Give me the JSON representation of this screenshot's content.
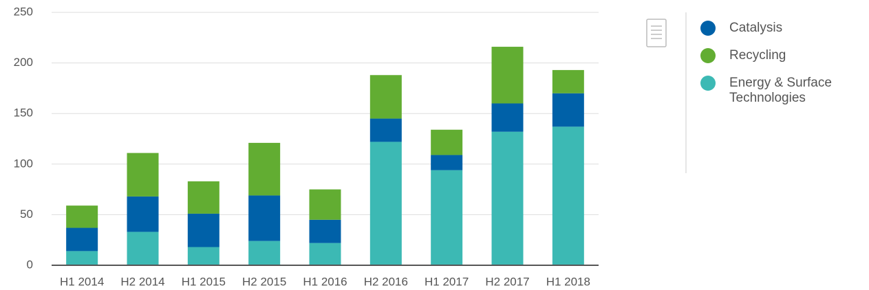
{
  "chart_data": {
    "type": "stacked_bar",
    "categories": [
      "H1 2014",
      "H2 2014",
      "H1 2015",
      "H2 2015",
      "H1 2016",
      "H2 2016",
      "H1 2017",
      "H2 2017",
      "H1 2018"
    ],
    "series": [
      {
        "name": "Catalysis",
        "color": "#0061a8",
        "values": [
          23,
          35,
          33,
          45,
          23,
          23,
          15,
          28,
          33
        ]
      },
      {
        "name": "Recycling",
        "color": "#62ad32",
        "values": [
          22,
          43,
          32,
          52,
          30,
          43,
          25,
          56,
          23
        ]
      },
      {
        "name": "Energy & Surface Technologies",
        "color": "#3cb9b4",
        "values": [
          14,
          33,
          18,
          24,
          22,
          122,
          94,
          132,
          137
        ]
      }
    ],
    "ylim": [
      0,
      250
    ],
    "yticks": [
      0,
      50,
      100,
      150,
      200,
      250
    ],
    "grid": true
  }
}
